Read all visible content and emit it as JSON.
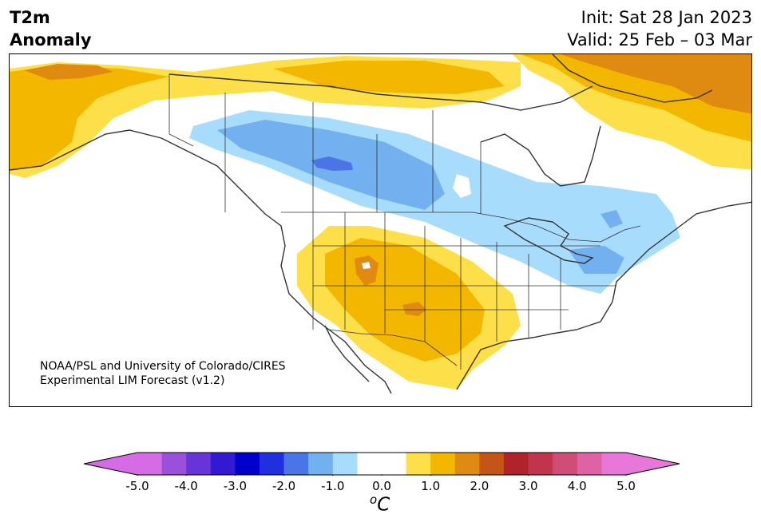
{
  "title": {
    "line1": "T2m",
    "line2": "Anomaly"
  },
  "run": {
    "init": "Init: Sat 28 Jan 2023",
    "valid": "Valid: 25 Feb – 03 Mar"
  },
  "credit": {
    "line1": "NOAA/PSL and University of Colorado/CIRES",
    "line2": "Experimental LIM Forecast (v1.2)"
  },
  "colorbar": {
    "unit_base": "C",
    "unit_sup": "o",
    "ticks": [
      "-5.0",
      "-4.0",
      "-3.0",
      "-2.0",
      "-1.0",
      "0.0",
      "1.0",
      "2.0",
      "3.0",
      "4.0",
      "5.0"
    ],
    "tick_values": [
      -5,
      -4,
      -3,
      -2,
      -1,
      0,
      1,
      2,
      3,
      4,
      5
    ],
    "range": [
      -5,
      5
    ],
    "colors": [
      "#d56ce6",
      "#9a50da",
      "#6634d8",
      "#3319d2",
      "#0000cc",
      "#2130df",
      "#4a75e7",
      "#73b0f0",
      "#a8dcfd",
      "#ffffff",
      "#ffffff",
      "#fddf4a",
      "#f4b700",
      "#df8a10",
      "#c45417",
      "#b0232a",
      "#c0354d",
      "#d04d77",
      "#df62a5",
      "#e777d8"
    ],
    "extend_low_color": "#d56ce6",
    "extend_high_color": "#e777d8"
  },
  "map": {
    "colors": {
      "warm1": "#fddf4a",
      "warm2": "#f4b700",
      "warm3": "#df8a10",
      "cool1": "#a8dcfd",
      "cool2": "#73b0f0",
      "cool3": "#4a75e7",
      "border": "#333333",
      "coast": "#333333"
    }
  }
}
